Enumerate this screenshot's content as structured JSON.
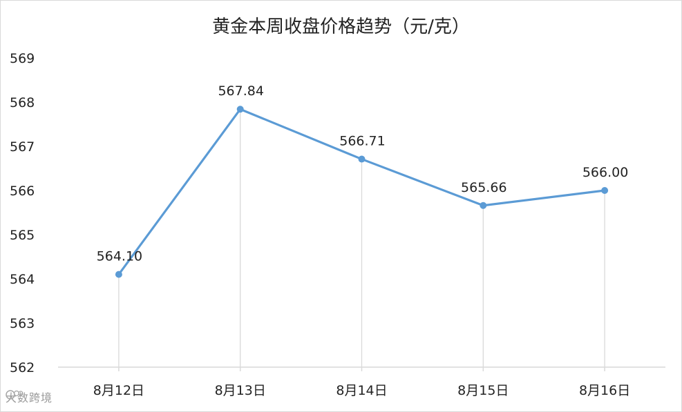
{
  "chart_data": {
    "type": "line",
    "title": "黄金本周收盘价格趋势（元/克）",
    "categories": [
      "8月12日",
      "8月13日",
      "8月14日",
      "8月15日",
      "8月16日"
    ],
    "values": [
      564.1,
      567.84,
      566.71,
      565.66,
      566.0
    ],
    "data_labels": [
      "564.10",
      "567.84",
      "566.71",
      "565.66",
      "566.00"
    ],
    "ylim": [
      562,
      569
    ],
    "y_ticks": [
      "562",
      "563",
      "564",
      "565",
      "566",
      "567",
      "568",
      "569"
    ],
    "xlabel": "",
    "ylabel": "",
    "grid": false,
    "drop_lines": true,
    "line_color": "#5b9bd5",
    "drop_line_color": "#d9d9d9",
    "axis_color": "#d9d9d9"
  },
  "watermark": {
    "text": "大数跨境"
  }
}
